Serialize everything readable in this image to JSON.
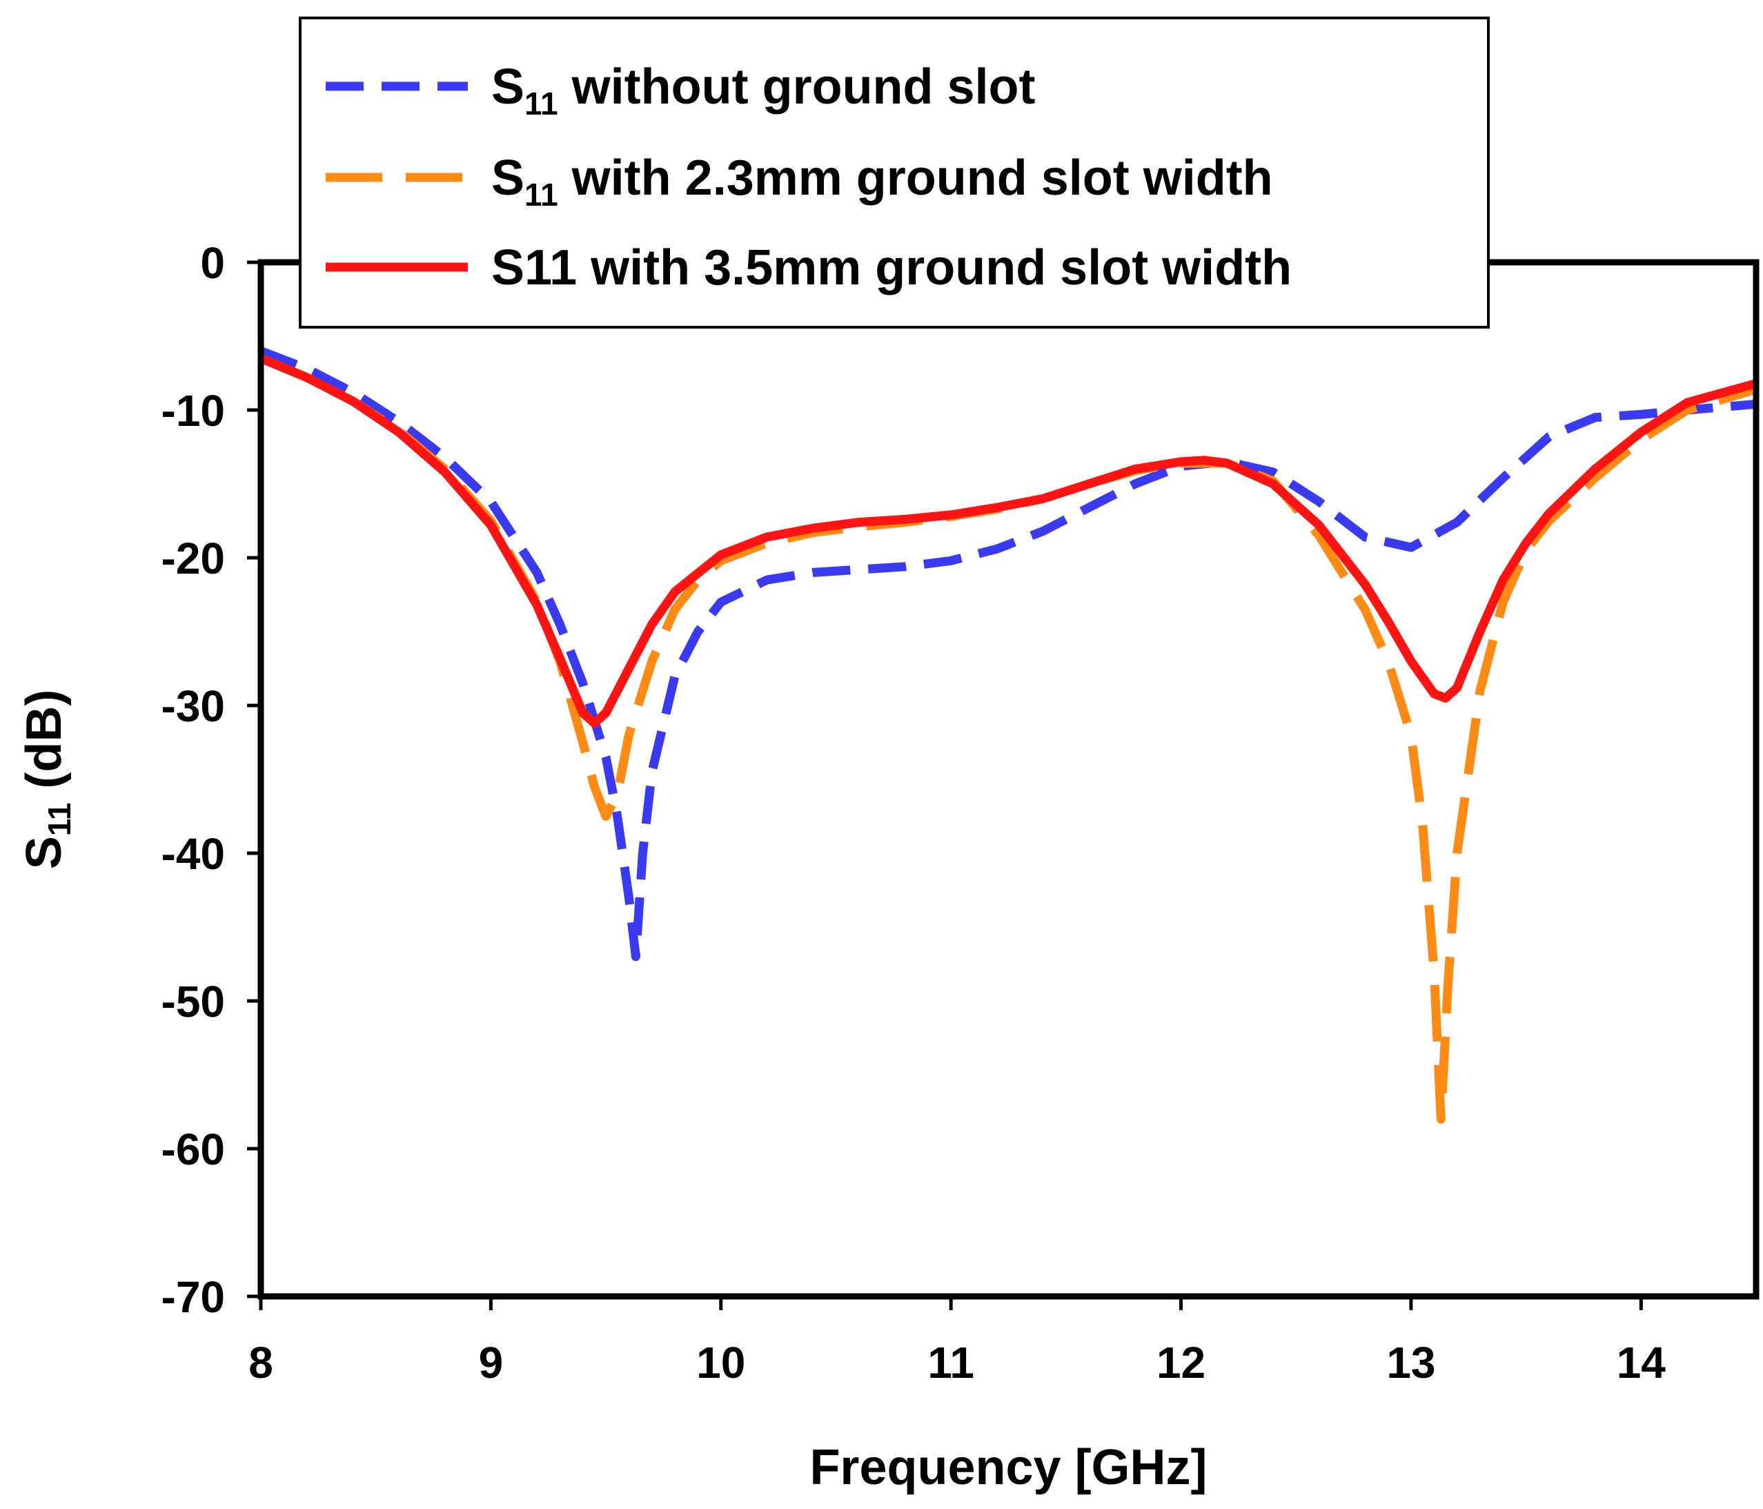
{
  "chart_data": {
    "type": "line",
    "title": "",
    "xlabel": "Frequency [GHz]",
    "ylabel_main": "S",
    "ylabel_sub": "11",
    "ylabel_unit": " (dB)",
    "xlim": [
      8,
      14.5
    ],
    "ylim": [
      -70,
      0
    ],
    "xticks": [
      8,
      9,
      10,
      11,
      12,
      13,
      14
    ],
    "yticks": [
      0,
      -10,
      -20,
      -30,
      -40,
      -50,
      -60,
      -70
    ],
    "xtick_labels": [
      "8",
      "9",
      "10",
      "11",
      "12",
      "13",
      "14"
    ],
    "ytick_labels": [
      "0",
      "-10",
      "-20",
      "-30",
      "-40",
      "-50",
      "-60",
      "-70"
    ],
    "grid": false,
    "legend_position": "top",
    "series": [
      {
        "name": "S11 without ground slot",
        "legend_main": "S",
        "legend_sub": "11",
        "legend_rest": " without ground slot",
        "color": "#3a3af0",
        "style": "short-dash",
        "x": [
          8.0,
          8.2,
          8.4,
          8.6,
          8.8,
          9.0,
          9.2,
          9.3,
          9.4,
          9.5,
          9.55,
          9.6,
          9.63,
          9.66,
          9.7,
          9.8,
          9.9,
          10.0,
          10.2,
          10.4,
          10.6,
          10.8,
          11.0,
          11.2,
          11.4,
          11.6,
          11.8,
          12.0,
          12.2,
          12.4,
          12.6,
          12.8,
          13.0,
          13.2,
          13.4,
          13.6,
          13.8,
          14.0,
          14.2,
          14.5
        ],
        "y": [
          -6.0,
          -7.2,
          -8.8,
          -10.8,
          -13.2,
          -16.2,
          -21.0,
          -24.5,
          -28.5,
          -33.5,
          -37.5,
          -43.0,
          -47.0,
          -40.0,
          -34.5,
          -28.0,
          -25.0,
          -23.0,
          -21.5,
          -21.0,
          -20.8,
          -20.6,
          -20.2,
          -19.4,
          -18.2,
          -16.6,
          -15.0,
          -13.8,
          -13.5,
          -14.2,
          -16.2,
          -18.6,
          -19.3,
          -17.6,
          -14.6,
          -11.8,
          -10.5,
          -10.3,
          -10.0,
          -9.6
        ]
      },
      {
        "name": "S11 with 2.3mm ground slot width",
        "legend_main": "S",
        "legend_sub": "11",
        "legend_rest": " with 2.3mm ground slot width",
        "color": "#ff8a14",
        "style": "long-dash",
        "x": [
          8.0,
          8.2,
          8.4,
          8.6,
          8.8,
          9.0,
          9.2,
          9.3,
          9.4,
          9.45,
          9.5,
          9.55,
          9.6,
          9.7,
          9.8,
          9.9,
          10.0,
          10.2,
          10.4,
          10.6,
          10.8,
          11.0,
          11.2,
          11.4,
          11.6,
          11.8,
          12.0,
          12.2,
          12.4,
          12.6,
          12.8,
          12.9,
          13.0,
          13.05,
          13.1,
          13.13,
          13.16,
          13.2,
          13.3,
          13.4,
          13.5,
          13.6,
          13.8,
          14.0,
          14.2,
          14.5
        ],
        "y": [
          -6.5,
          -7.8,
          -9.4,
          -11.4,
          -14.0,
          -17.5,
          -23.0,
          -27.0,
          -32.5,
          -35.5,
          -37.5,
          -36.0,
          -32.0,
          -27.0,
          -23.5,
          -21.5,
          -20.2,
          -19.0,
          -18.3,
          -17.9,
          -17.6,
          -17.2,
          -16.7,
          -16.0,
          -15.0,
          -14.1,
          -13.6,
          -13.6,
          -14.8,
          -18.5,
          -23.5,
          -27.0,
          -32.0,
          -38.0,
          -48.0,
          -58.0,
          -49.0,
          -40.0,
          -29.0,
          -23.0,
          -19.5,
          -17.5,
          -14.6,
          -12.0,
          -10.0,
          -8.6
        ]
      },
      {
        "name": "S11 with 3.5mm ground slot width",
        "legend_main": "S11",
        "legend_sub": "",
        "legend_rest": " with 3.5mm ground slot width",
        "color": "#ff1414",
        "style": "solid",
        "x": [
          8.0,
          8.2,
          8.4,
          8.6,
          8.8,
          9.0,
          9.2,
          9.3,
          9.4,
          9.45,
          9.5,
          9.6,
          9.7,
          9.8,
          10.0,
          10.2,
          10.4,
          10.6,
          10.8,
          11.0,
          11.2,
          11.4,
          11.6,
          11.8,
          12.0,
          12.1,
          12.2,
          12.4,
          12.6,
          12.8,
          12.9,
          13.0,
          13.1,
          13.15,
          13.2,
          13.3,
          13.4,
          13.5,
          13.6,
          13.8,
          14.0,
          14.2,
          14.5
        ],
        "y": [
          -6.5,
          -7.8,
          -9.4,
          -11.5,
          -14.2,
          -17.8,
          -23.2,
          -26.8,
          -30.5,
          -31.2,
          -30.5,
          -27.5,
          -24.5,
          -22.3,
          -19.8,
          -18.6,
          -18.0,
          -17.6,
          -17.4,
          -17.1,
          -16.6,
          -16.0,
          -15.0,
          -14.0,
          -13.5,
          -13.4,
          -13.6,
          -15.0,
          -17.8,
          -21.8,
          -24.3,
          -27.0,
          -29.2,
          -29.5,
          -28.8,
          -25.0,
          -21.5,
          -19.0,
          -17.0,
          -14.0,
          -11.5,
          -9.5,
          -8.2
        ]
      }
    ]
  }
}
